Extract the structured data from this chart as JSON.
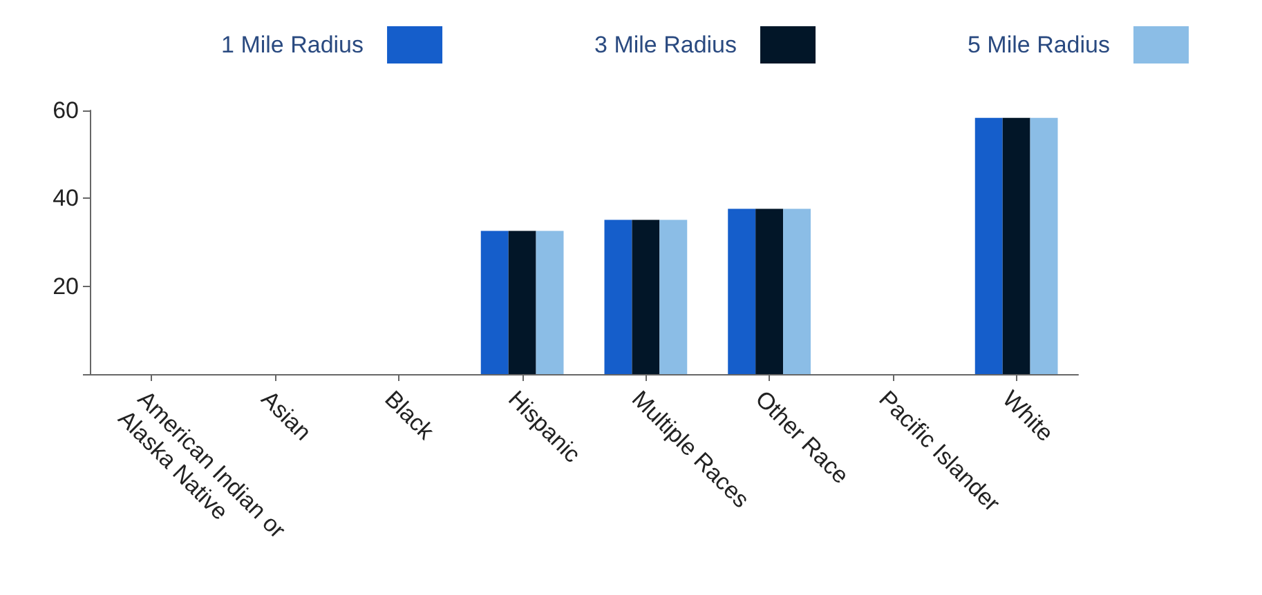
{
  "chart_data": {
    "type": "bar",
    "categories": [
      "American Indian or Alaska Native",
      "Asian",
      "Black",
      "Hispanic",
      "Multiple Races",
      "Other Race",
      "Pacific Islander",
      "White"
    ],
    "series": [
      {
        "name": "1 Mile Radius",
        "color": "#155ecb",
        "values": [
          null,
          null,
          null,
          32.6,
          35.1,
          37.6,
          null,
          58.3
        ]
      },
      {
        "name": "3 Mile Radius",
        "color": "#021628",
        "values": [
          null,
          null,
          null,
          32.6,
          35.1,
          37.6,
          null,
          58.3
        ]
      },
      {
        "name": "5 Mile Radius",
        "color": "#8bbde6",
        "values": [
          null,
          null,
          null,
          32.6,
          35.1,
          37.6,
          null,
          58.3
        ]
      }
    ],
    "ylim": [
      0,
      60
    ],
    "yticks": [
      {
        "value": 0,
        "label": null
      },
      20,
      40,
      60
    ],
    "grid": false,
    "legend": "top"
  }
}
